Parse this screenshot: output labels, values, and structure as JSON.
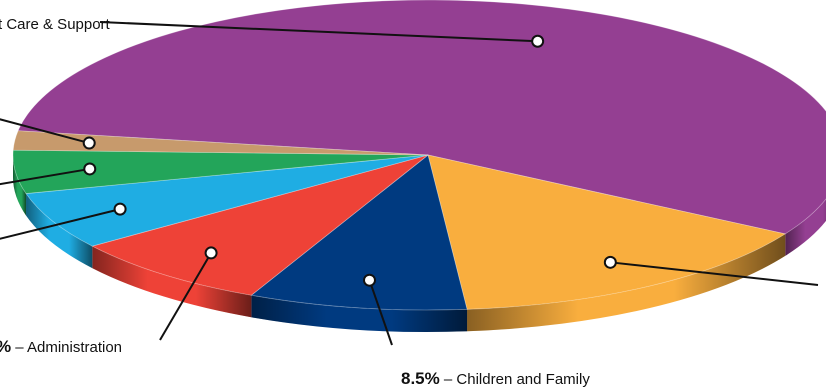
{
  "chart_data": {
    "type": "pie",
    "style": "3d-exploded-tilted",
    "visible_labels": [
      {
        "percent": "",
        "text": "t Care & Support"
      },
      {
        "percent": "%",
        "text": " – Administration"
      },
      {
        "percent": "8.5%",
        "text": " – Children and Family"
      }
    ],
    "slices": [
      {
        "category": "Care & Support",
        "value": 56.0,
        "color": "#943F92"
      },
      {
        "category": "",
        "value": 15.0,
        "color": "#F9AE3E"
      },
      {
        "category": "Children and Family",
        "value": 8.5,
        "color": "#003A80"
      },
      {
        "category": "Administration",
        "value": 8.0,
        "color": "#EE4237"
      },
      {
        "category": "",
        "value": 6.0,
        "color": "#1FADE3"
      },
      {
        "category": "",
        "value": 4.5,
        "color": "#23A55A"
      },
      {
        "category": "",
        "value": 2.0,
        "color": "#C79A6C"
      }
    ]
  }
}
